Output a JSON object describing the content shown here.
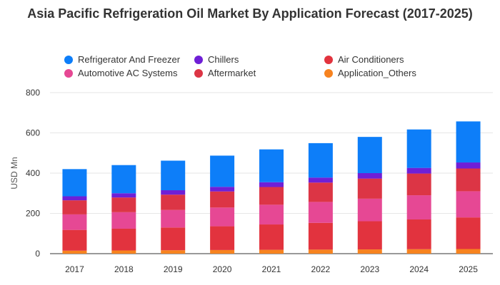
{
  "chart_data": {
    "type": "bar",
    "stacked": true,
    "title": "Asia Pacific Refrigeration Oil Market By Application Forecast (2017-2025)",
    "ylabel": "USD Mn",
    "xlabel": "",
    "ylim": [
      0,
      800
    ],
    "yticks": [
      0,
      200,
      400,
      600,
      800
    ],
    "grid": true,
    "legend_position": "top",
    "categories": [
      "2017",
      "2018",
      "2019",
      "2020",
      "2021",
      "2022",
      "2023",
      "2024",
      "2025"
    ],
    "series": [
      {
        "name": "Application_Others",
        "color": "#f7831f",
        "values": [
          15,
          16,
          17,
          18,
          19,
          20,
          21,
          22,
          23
        ]
      },
      {
        "name": "Air Conditioners",
        "color": "#e2333e",
        "values": [
          103,
          108,
          113,
          118,
          126,
          133,
          140,
          148,
          157
        ]
      },
      {
        "name": "Automotive AC Systems",
        "color": "#e64894",
        "values": [
          77,
          82,
          87,
          93,
          98,
          104,
          112,
          120,
          130
        ]
      },
      {
        "name": "Aftermarket",
        "color": "#dc3545",
        "values": [
          70,
          73,
          76,
          80,
          88,
          96,
          100,
          108,
          113
        ]
      },
      {
        "name": "Chillers",
        "color": "#6f1fd6",
        "values": [
          20,
          21,
          22,
          23,
          24,
          25,
          27,
          28,
          30
        ]
      },
      {
        "name": "Refrigerator And Freezer",
        "color": "#0d7ef9",
        "values": [
          135,
          140,
          147,
          155,
          163,
          171,
          180,
          191,
          204
        ]
      }
    ]
  },
  "legend": [
    {
      "label": "Refrigerator And Freezer",
      "color": "#0d7ef9"
    },
    {
      "label": "Chillers",
      "color": "#6f1fd6"
    },
    {
      "label": "Air Conditioners",
      "color": "#e2333e"
    },
    {
      "label": "Automotive AC Systems",
      "color": "#e64894"
    },
    {
      "label": "Aftermarket",
      "color": "#dc3545"
    },
    {
      "label": "Application_Others",
      "color": "#f7831f"
    }
  ]
}
